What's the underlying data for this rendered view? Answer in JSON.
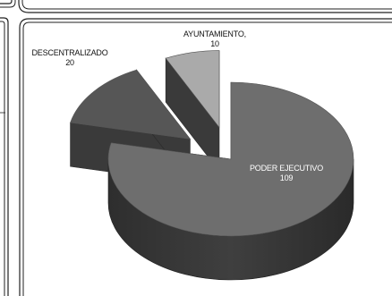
{
  "chart_data": {
    "type": "pie",
    "title": "",
    "style": "3d-exploded",
    "palette": "grayscale",
    "slices": [
      {
        "label": "PODER EJECUTIVO",
        "value": 109,
        "color": "#6e6e6e"
      },
      {
        "label": "DESCENTRALIZADO",
        "value": 20,
        "color": "#565656"
      },
      {
        "label": "AYUNTAMIENTO,",
        "value": 10,
        "color": "#aaaaaa"
      }
    ],
    "legend": "none"
  }
}
